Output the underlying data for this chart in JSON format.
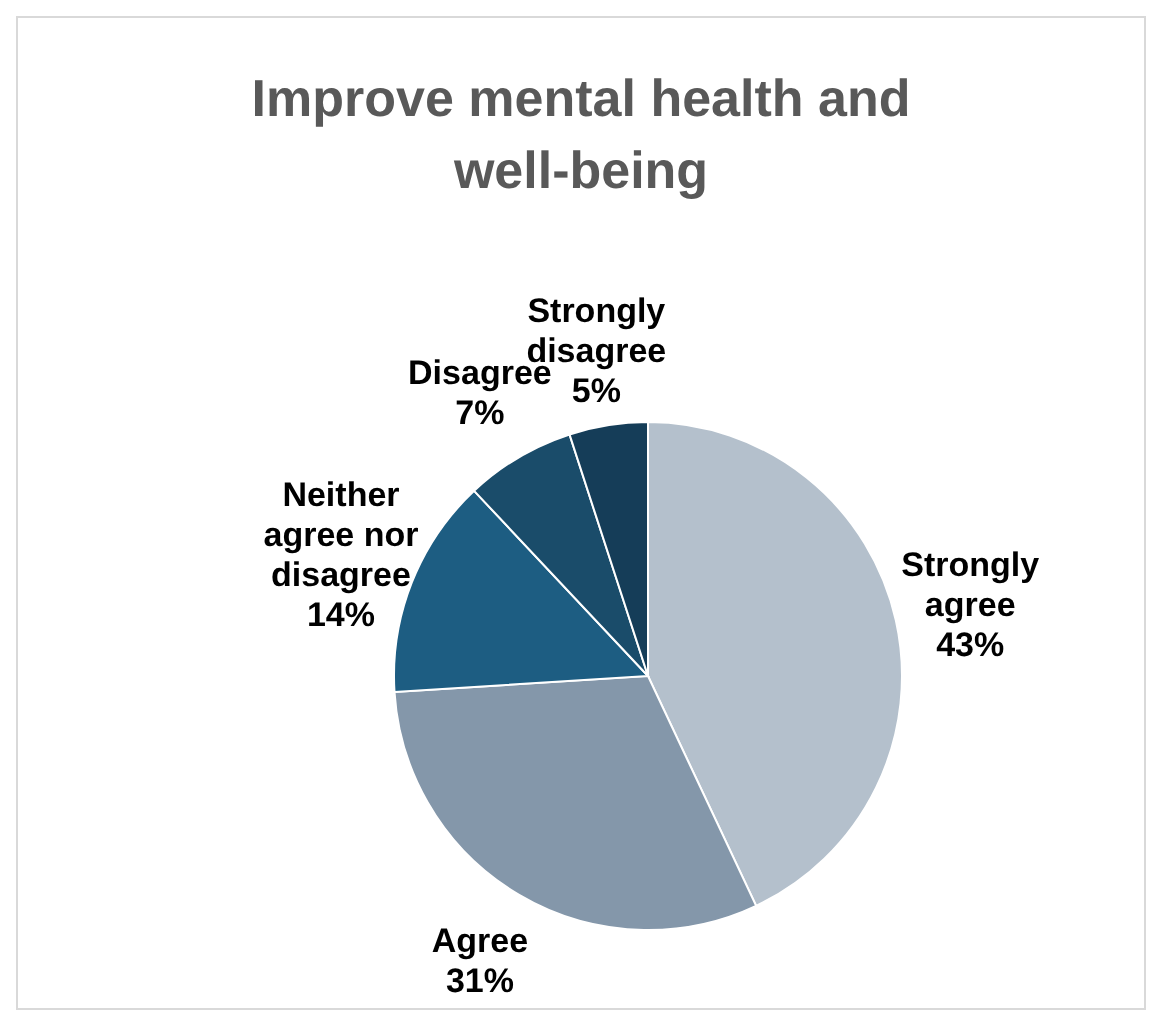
{
  "chart_data": {
    "type": "pie",
    "title": "Improve mental health and well-being",
    "categories": [
      "Strongly agree",
      "Agree",
      "Neither agree nor disagree",
      "Disagree",
      "Strongly disagree"
    ],
    "values": [
      43,
      31,
      14,
      7,
      5
    ],
    "value_labels": [
      "43%",
      "31%",
      "14%",
      "7%",
      "5%"
    ],
    "colors": [
      "#b4c0cc",
      "#8497aa",
      "#1d5d82",
      "#1a4c6a",
      "#153d58"
    ]
  }
}
